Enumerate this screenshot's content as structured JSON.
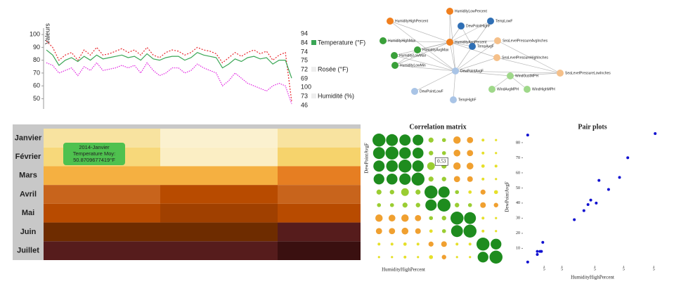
{
  "chart_data": [
    {
      "type": "line",
      "y_label": "Valeurs",
      "ylim": [
        42,
        105
      ],
      "yticks": [
        50,
        60,
        70,
        80,
        90,
        100
      ],
      "series": [
        {
          "name": "Temperature (°F)",
          "color": "#e8262b",
          "swatch": "#3aa655",
          "legend_ticks": [
            94,
            84,
            74
          ],
          "values": [
            95,
            90,
            80,
            84,
            86,
            80,
            88,
            84,
            90,
            84,
            85,
            87,
            89,
            86,
            88,
            84,
            90,
            84,
            82,
            86,
            88,
            87,
            84,
            86,
            90,
            88,
            87,
            85,
            78,
            82,
            86,
            83,
            86,
            88,
            85,
            87,
            80,
            84,
            86,
            48
          ]
        },
        {
          "name": "Rosée (°F)",
          "color": "#3aa655",
          "swatch": "#eeeeee",
          "legend_ticks": [
            75,
            72,
            69
          ],
          "values": [
            88,
            84,
            76,
            80,
            82,
            79,
            83,
            80,
            84,
            81,
            82,
            83,
            84,
            82,
            83,
            80,
            85,
            81,
            80,
            82,
            83,
            83,
            80,
            82,
            86,
            84,
            83,
            82,
            74,
            77,
            81,
            79,
            82,
            83,
            81,
            82,
            77,
            80,
            80,
            66
          ]
        },
        {
          "name": "Humidité (%)",
          "color": "#e020e0",
          "swatch": "#eeeeee",
          "legend_ticks": [
            100,
            73,
            46
          ],
          "values": [
            78,
            76,
            70,
            72,
            74,
            68,
            75,
            72,
            78,
            72,
            73,
            74,
            76,
            74,
            76,
            70,
            78,
            72,
            68,
            70,
            74,
            74,
            70,
            72,
            77,
            74,
            72,
            70,
            60,
            64,
            70,
            66,
            62,
            60,
            58,
            56,
            60,
            62,
            60,
            46
          ]
        }
      ]
    },
    {
      "type": "network",
      "nodes": [
        {
          "label": "HumidityLowPercent",
          "color": "#f07f1e"
        },
        {
          "label": "HumidityHighPercent",
          "color": "#f07f1e"
        },
        {
          "label": "TempLowF",
          "color": "#2f6fb5"
        },
        {
          "label": "DewPointHighF",
          "color": "#2f6fb5"
        },
        {
          "label": "HumidityHighMax",
          "color": "#3aa03a"
        },
        {
          "label": "HumidityAvgPercent",
          "color": "#f07f1e"
        },
        {
          "label": "SeaLevelPressureAvgInches",
          "color": "#f5c08a"
        },
        {
          "label": "TempAvgF",
          "color": "#2f6fb5"
        },
        {
          "label": "HumidityAvgMax",
          "color": "#3aa03a"
        },
        {
          "label": "HumidityLowMax",
          "color": "#3aa03a"
        },
        {
          "label": "SeaLevelPressureHighInches",
          "color": "#f5c08a"
        },
        {
          "label": "HumidityLowMin",
          "color": "#3aa03a"
        },
        {
          "label": "DewPointAvgF",
          "color": "#a9c4e6"
        },
        {
          "label": "WindGustMPH",
          "color": "#9fd88a"
        },
        {
          "label": "SeaLevelPressureLowInches",
          "color": "#f5c08a"
        },
        {
          "label": "WindAvgMPH",
          "color": "#9fd88a"
        },
        {
          "label": "WindHighMPH",
          "color": "#9fd88a"
        },
        {
          "label": "DewPointLowF",
          "color": "#a9c4e6"
        },
        {
          "label": "TempHighF",
          "color": "#a9c4e6"
        }
      ]
    },
    {
      "type": "heatmap",
      "rows": [
        "Janvier",
        "Février",
        "Mars",
        "Avril",
        "Mai",
        "Juin",
        "Juillet"
      ],
      "colors": [
        [
          "#f8e3a0",
          "#fbf1cf",
          "#f8e3a0"
        ],
        [
          "#f7d87a",
          "#fbeec4",
          "#f6d36c"
        ],
        [
          "#f5b041",
          "#f5b041",
          "#e67e22"
        ],
        [
          "#c8641c",
          "#b84b00",
          "#c8641c"
        ],
        [
          "#b84b00",
          "#a04000",
          "#b84b00"
        ],
        [
          "#6e2c00",
          "#6e2c00",
          "#561c1c"
        ],
        [
          "#561c1c",
          "#561c1c",
          "#3a1010"
        ]
      ],
      "tooltip": [
        "2014-Janvier",
        "Temperature Moy:",
        "50.8709677419°F"
      ]
    },
    {
      "type": "correlation",
      "title": "Correlation matrix",
      "x_label": "HumidityHighPercent",
      "y_label": "DewPointAvgF",
      "colors": [
        "#e0661c",
        "#f0a030",
        "#e6e02a",
        "#9acd32",
        "#1e8c1e"
      ],
      "matrix": [
        [
          1,
          0.9,
          0.85,
          0.8,
          0.3,
          0.2,
          -0.5,
          -0.4,
          0.1,
          0.05
        ],
        [
          0.9,
          1,
          0.88,
          0.82,
          0.25,
          0.2,
          -0.45,
          -0.4,
          0.1,
          0.05
        ],
        [
          0.85,
          0.88,
          1,
          0.86,
          0.53,
          0.3,
          -0.5,
          -0.45,
          0.15,
          0.1
        ],
        [
          0.8,
          0.82,
          0.86,
          1,
          0.3,
          0.25,
          -0.4,
          -0.35,
          0.1,
          0.05
        ],
        [
          0.3,
          0.25,
          0.53,
          0.3,
          1,
          0.85,
          0.2,
          0.15,
          -0.3,
          -0.2
        ],
        [
          0.2,
          0.2,
          0.3,
          0.25,
          0.85,
          1,
          0.25,
          0.2,
          -0.35,
          -0.25
        ],
        [
          -0.5,
          -0.45,
          -0.5,
          -0.4,
          0.2,
          0.25,
          1,
          0.9,
          0.1,
          0.05
        ],
        [
          -0.4,
          -0.4,
          -0.45,
          -0.35,
          0.15,
          0.2,
          0.9,
          1,
          0.1,
          0.05
        ],
        [
          0.1,
          0.1,
          0.15,
          0.1,
          -0.3,
          -0.35,
          0.1,
          0.1,
          1,
          0.8
        ],
        [
          0.05,
          0.05,
          0.1,
          0.05,
          -0.2,
          -0.25,
          0.05,
          0.05,
          0.8,
          1
        ]
      ]
    },
    {
      "type": "scatter",
      "title": "Pair plots",
      "x_label": "HumidityHighPercent",
      "y_label": "DewPointAvgF",
      "color": "#1010d0",
      "xlim": [
        0,
        100
      ],
      "ylim": [
        -1,
        86
      ],
      "xticks": [
        {
          "value": 15,
          "label": "5"
        },
        {
          "value": 28,
          "label": "5"
        },
        {
          "value": 52,
          "label": "5"
        },
        {
          "value": 73,
          "label": "5"
        },
        {
          "value": 95,
          "label": "5"
        }
      ],
      "yticks": [
        10,
        20,
        30,
        40,
        50,
        60,
        70,
        80
      ],
      "x": [
        3,
        10,
        12,
        13,
        10,
        14,
        37,
        44,
        47,
        49,
        53,
        55,
        62,
        70,
        76,
        96,
        3
      ],
      "y": [
        85,
        8,
        8,
        8,
        6,
        14,
        29,
        35,
        39,
        42,
        40,
        55,
        49,
        57,
        70,
        86,
        1
      ]
    }
  ]
}
